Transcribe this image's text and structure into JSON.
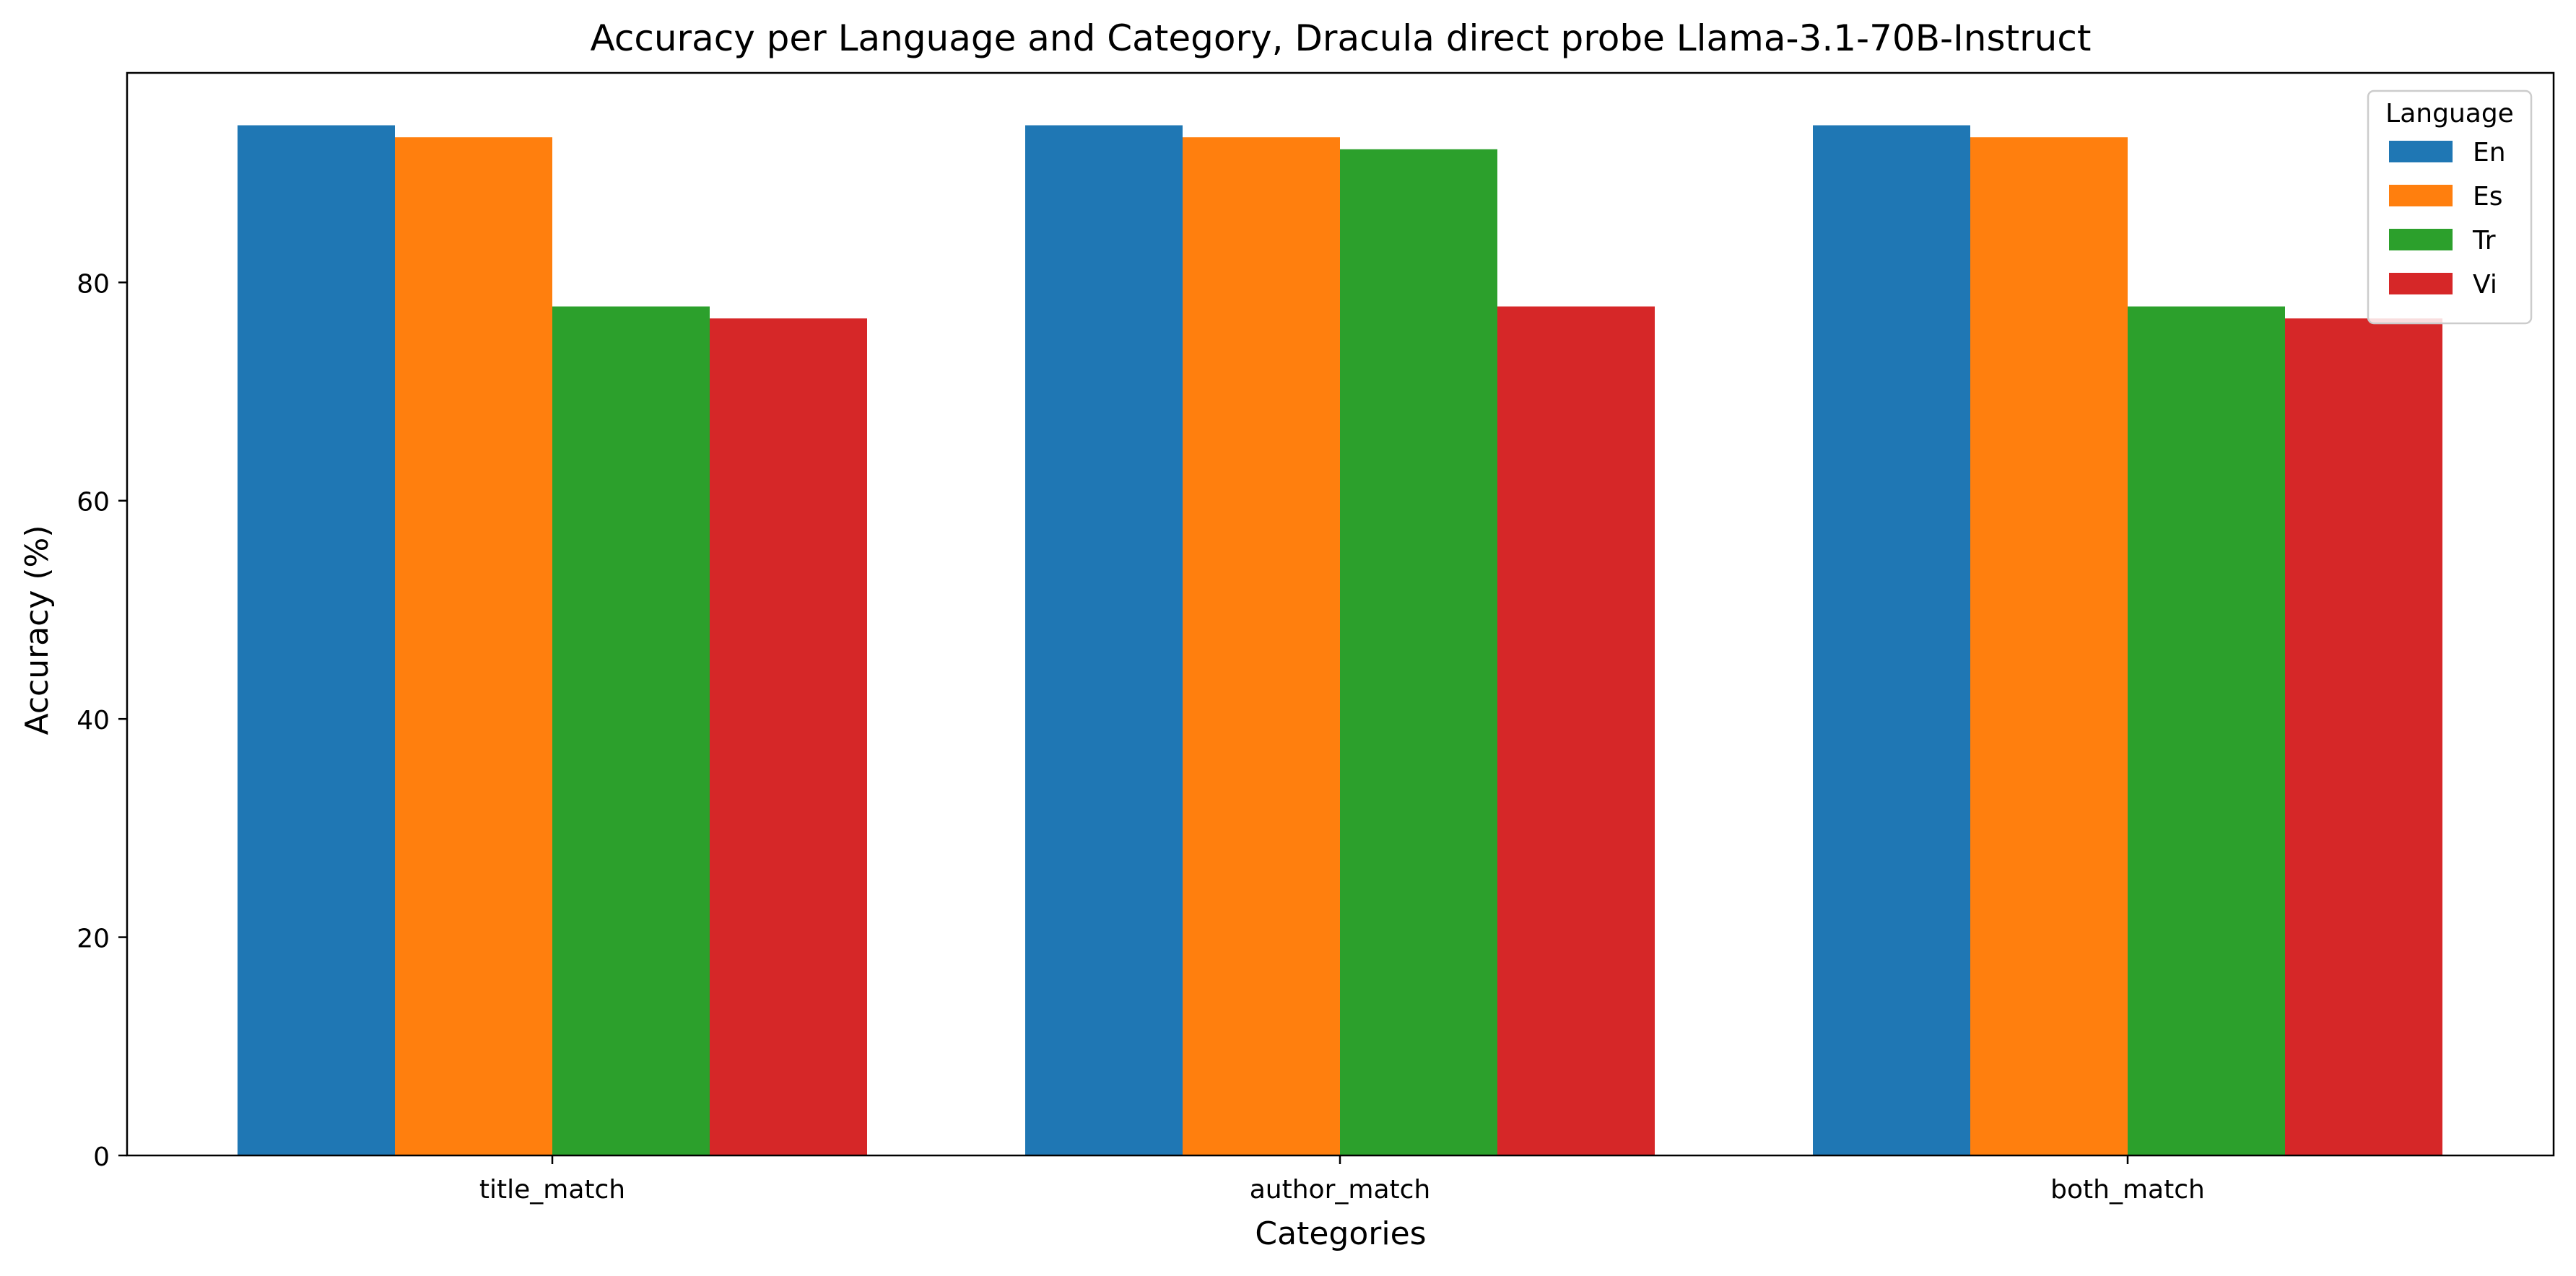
{
  "chart_data": {
    "type": "bar",
    "title": "Accuracy per Language and Category, Dracula direct probe Llama-3.1-70B-Instruct",
    "xlabel": "Categories",
    "ylabel": "Accuracy (%)",
    "ylim": [
      0,
      99.2
    ],
    "yticks": [
      0,
      20,
      40,
      60,
      80
    ],
    "grid": false,
    "categories": [
      "title_match",
      "author_match",
      "both_match"
    ],
    "legend": {
      "title": "Language",
      "placement": "top-right"
    },
    "series": [
      {
        "name": "En",
        "color": "#1f77b4",
        "values": [
          94.4,
          94.4,
          94.4
        ]
      },
      {
        "name": "Es",
        "color": "#ff7f0e",
        "values": [
          93.3,
          93.3,
          93.3
        ]
      },
      {
        "name": "Tr",
        "color": "#2ca02c",
        "values": [
          77.8,
          92.2,
          77.8
        ]
      },
      {
        "name": "Vi",
        "color": "#d62728",
        "values": [
          76.7,
          77.8,
          76.7
        ]
      }
    ]
  }
}
